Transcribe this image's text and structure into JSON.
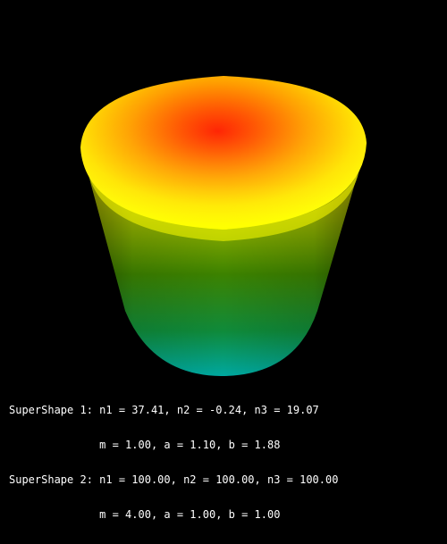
{
  "scene": {
    "background": "#000000",
    "text_color": "#ffffff",
    "colors": {
      "top_center": "#ff1a00",
      "top_mid": "#ff8a00",
      "top_rim": "#ffff00",
      "side_top": "#f2f200",
      "side_mid": "#2e7a00",
      "side_bottom": "#00a8a0"
    }
  },
  "params": {
    "shape1": {
      "line1": "SuperShape 1: n1 = 37.41, n2 = -0.24, n3 = 19.07",
      "line2": "              m = 1.00, a = 1.10, b = 1.88"
    },
    "shape2": {
      "line1": "SuperShape 2: n1 = 100.00, n2 = 100.00, n3 = 100.00",
      "line2": "              m = 4.00, a = 1.00, b = 1.00"
    }
  }
}
